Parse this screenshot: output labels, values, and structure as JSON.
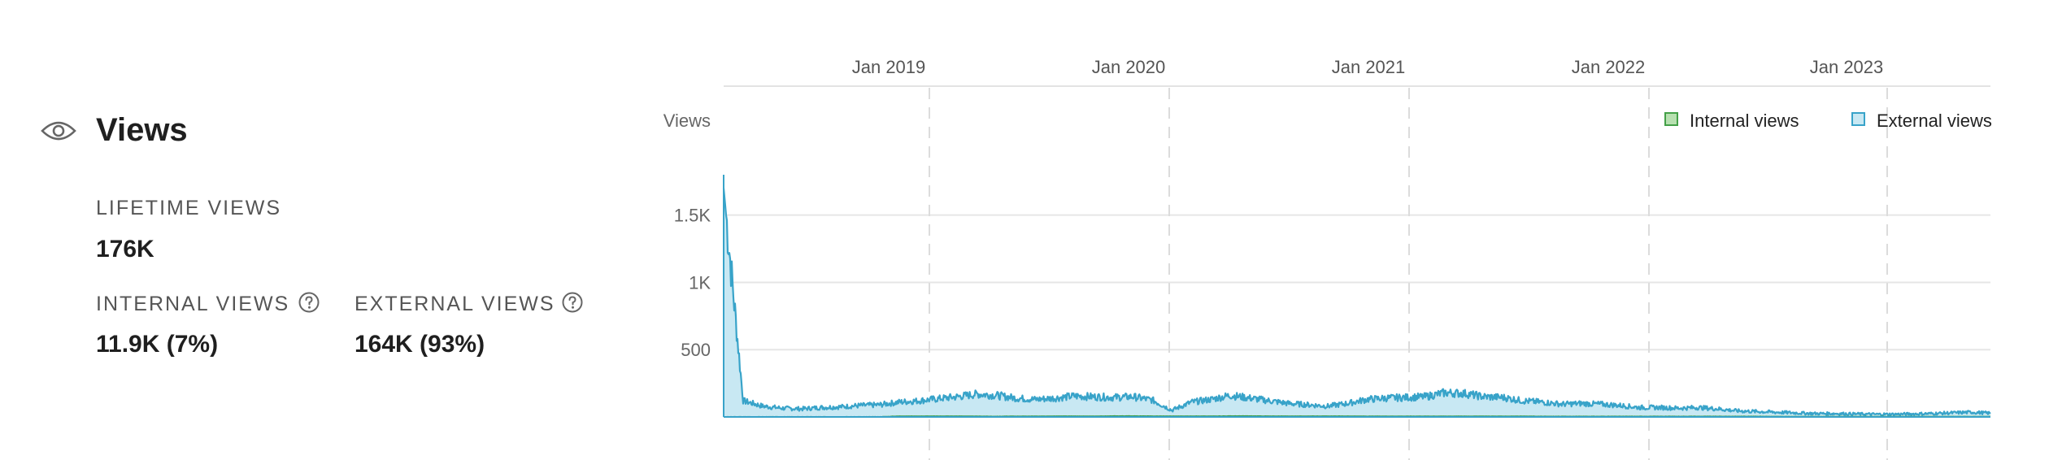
{
  "summary": {
    "title": "Views",
    "icon": "eye-icon",
    "lifetime": {
      "label": "LIFETIME VIEWS",
      "value": "176K"
    },
    "internal": {
      "label": "INTERNAL VIEWS",
      "value": "11.9K (7%)",
      "icon": "help-icon"
    },
    "external": {
      "label": "EXTERNAL VIEWS",
      "value": "164K (93%)",
      "icon": "help-icon"
    }
  },
  "chart_data": {
    "type": "area",
    "ylabel": "Views",
    "y_ticks": [
      "500",
      "1K",
      "1.5K"
    ],
    "y_tick_values": [
      500,
      1000,
      1500
    ],
    "ylim": [
      0,
      1800
    ],
    "x_ticks": [
      "Jan 2019",
      "Jan 2020",
      "Jan 2021",
      "Jan 2022",
      "Jan 2023"
    ],
    "x_range": [
      "2018-02",
      "2023-08"
    ],
    "grid": true,
    "legend_position": "top-right",
    "series": [
      {
        "name": "Internal views",
        "color": "#43a047",
        "fill": "#b7e0b0",
        "values": [
          0,
          0,
          0,
          0,
          0,
          0,
          0,
          0,
          0,
          5,
          5,
          5,
          5,
          4,
          3,
          4,
          4,
          5,
          5,
          4,
          6,
          6,
          5,
          5,
          5,
          5,
          6,
          6,
          5,
          5,
          5,
          5,
          5,
          4,
          4,
          4,
          4,
          4,
          4,
          4,
          4,
          4,
          3,
          3,
          3,
          3,
          3,
          3,
          3,
          3,
          3,
          3,
          3,
          3,
          2,
          2,
          2,
          2,
          2,
          2,
          2,
          2,
          2,
          2,
          2,
          2
        ]
      },
      {
        "name": "External views",
        "color": "#38a3c9",
        "fill": "#c8e8f3",
        "values": [
          1700,
          120,
          80,
          65,
          60,
          70,
          75,
          85,
          90,
          110,
          120,
          135,
          150,
          170,
          160,
          140,
          130,
          140,
          155,
          150,
          145,
          150,
          125,
          50,
          110,
          130,
          160,
          140,
          120,
          100,
          90,
          80,
          100,
          130,
          140,
          145,
          150,
          180,
          175,
          150,
          145,
          120,
          110,
          95,
          100,
          95,
          85,
          70,
          70,
          65,
          70,
          60,
          45,
          40,
          35,
          30,
          25,
          25,
          22,
          20,
          20,
          22,
          25,
          30,
          35,
          28
        ]
      }
    ]
  }
}
